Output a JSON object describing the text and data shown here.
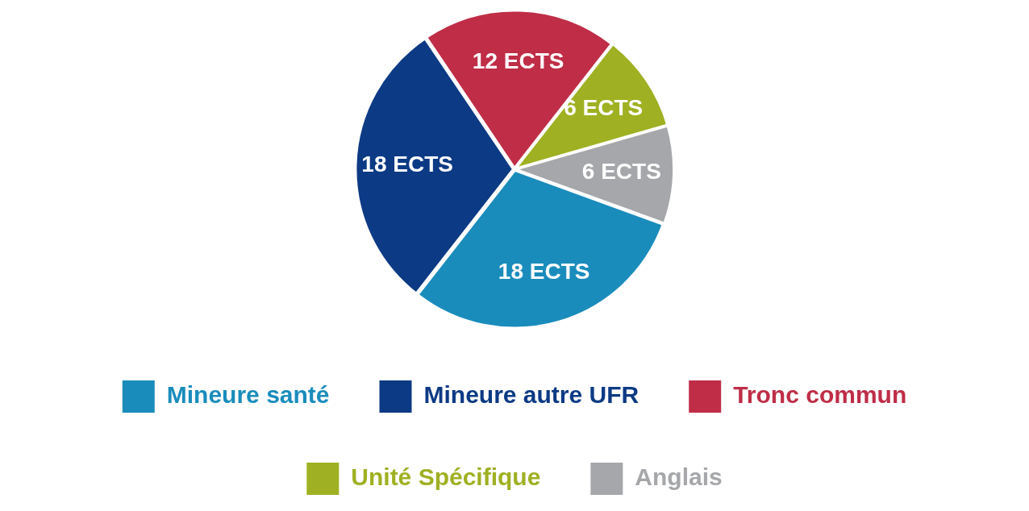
{
  "chart_data": {
    "type": "pie",
    "categories": [
      "Mineure santé",
      "Mineure autre UFR",
      "Tronc commun",
      "Unité Spécifique",
      "Anglais"
    ],
    "values": [
      18,
      18,
      12,
      6,
      6
    ],
    "colors": [
      "#1a8cbc",
      "#0c3a84",
      "#bf2d47",
      "#9fb022",
      "#a6a7aa"
    ],
    "value_labels": [
      "18 ECTS",
      "18 ECTS",
      "12 ECTS",
      "6 ECTS",
      "6 ECTS"
    ],
    "legend": "bottom"
  }
}
